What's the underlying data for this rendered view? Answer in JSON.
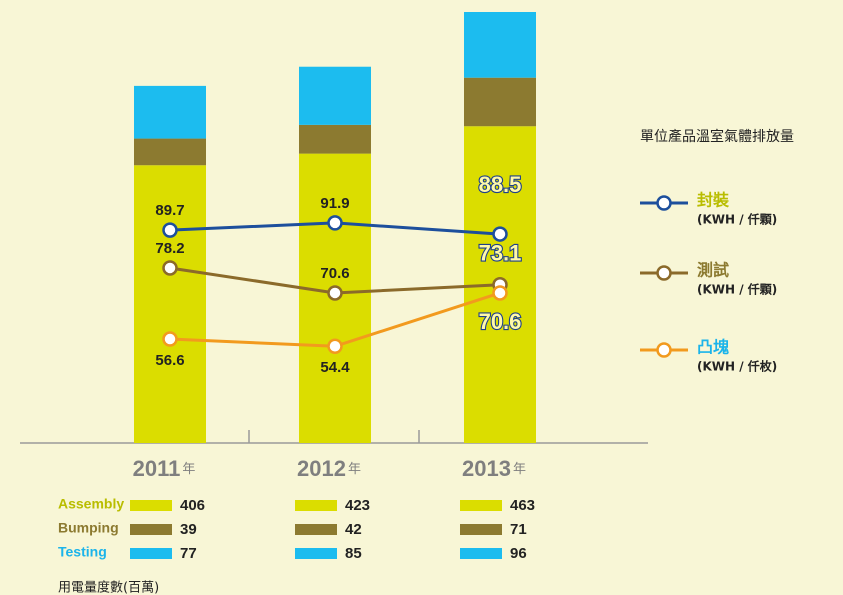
{
  "chart_data": [
    {
      "type": "bar",
      "stacked": true,
      "categories": [
        "2011",
        "2012",
        "2013"
      ],
      "category_suffix": "年",
      "ylim": [
        0,
        630
      ],
      "series": [
        {
          "name": "Assembly",
          "color": "#dbdd00",
          "values": [
            406,
            423,
            463
          ]
        },
        {
          "name": "Bumping",
          "color": "#8c7a30",
          "values": [
            39,
            42,
            71
          ]
        },
        {
          "name": "Testing",
          "color": "#1cbcef",
          "values": [
            77,
            85,
            96
          ]
        }
      ],
      "note": "用電量度數(百萬)"
    },
    {
      "type": "line",
      "title": "單位產品溫室氣體排放量",
      "y2lim": [
        25,
        156
      ],
      "series": [
        {
          "name": "封裝",
          "unit": "(KWH / 仟顆)",
          "color": "#1d4f9c",
          "axis": "y2",
          "values": [
            89.7,
            91.9,
            88.5
          ]
        },
        {
          "name": "測試",
          "unit": "(KWH / 仟顆)",
          "color": "#8b6a2a",
          "axis": "y2",
          "values": [
            78.2,
            70.6,
            73.1
          ]
        },
        {
          "name": "凸塊",
          "unit": "(KWH / 仟枚)",
          "color": "#f29a1e",
          "axis": "y2",
          "values": [
            56.6,
            54.4,
            70.6
          ]
        }
      ]
    }
  ]
}
